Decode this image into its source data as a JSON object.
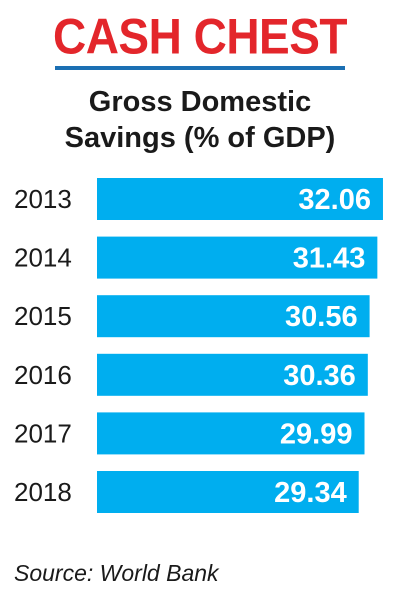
{
  "header": {
    "title": "CASH CHEST",
    "subtitle_line1": "Gross Domestic",
    "subtitle_line2": "Savings (% of GDP)"
  },
  "colors": {
    "title": "#e3262b",
    "rule": "#1b6fb3",
    "bar": "#00aeef",
    "bar_label": "#ffffff",
    "text": "#1a1a1a"
  },
  "chart_data": {
    "type": "bar",
    "orientation": "horizontal",
    "title": "Gross Domestic Savings (% of GDP)",
    "categories": [
      "2013",
      "2014",
      "2015",
      "2016",
      "2017",
      "2018"
    ],
    "values": [
      32.06,
      31.43,
      30.56,
      30.36,
      29.99,
      29.34
    ],
    "data_labels": [
      "32.06",
      "31.43",
      "30.56",
      "30.36",
      "29.99",
      "29.34"
    ],
    "xlabel": "",
    "ylabel": "",
    "grid": false,
    "legend": "none"
  },
  "footer": {
    "source": "Source: World Bank"
  }
}
